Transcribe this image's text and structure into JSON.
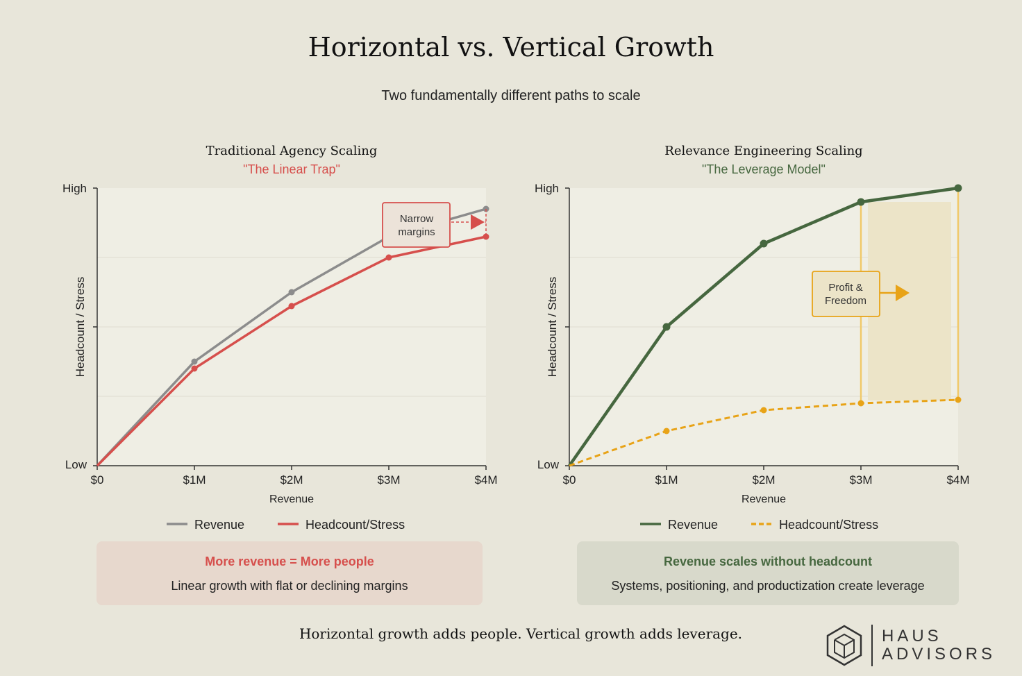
{
  "title": "Horizontal vs. Vertical Growth",
  "subtitle": "Two fundamentally different paths to scale",
  "chart_data": [
    {
      "type": "line",
      "title": "Traditional Agency Scaling",
      "subtitle": "\"The Linear Trap\"",
      "xlabel": "Revenue",
      "ylabel": "Headcount / Stress",
      "x": [
        "$0",
        "$1M",
        "$2M",
        "$3M",
        "$4M"
      ],
      "y_ticks": [
        "Low",
        "High"
      ],
      "ylim": [
        0,
        1
      ],
      "grid": true,
      "legend": "bottom",
      "series": [
        {
          "name": "Revenue",
          "values": [
            0,
            0.375,
            0.625,
            0.825,
            0.925
          ],
          "color": "#8c8c8c",
          "dashed": false
        },
        {
          "name": "Headcount/Stress",
          "values": [
            0,
            0.35,
            0.575,
            0.75,
            0.825
          ],
          "color": "#d64f4c",
          "dashed": false
        }
      ],
      "annotation": {
        "text_line1": "Narrow",
        "text_line2": "margins"
      }
    },
    {
      "type": "line",
      "title": "Relevance Engineering Scaling",
      "subtitle": "\"The Leverage Model\"",
      "xlabel": "Revenue",
      "ylabel": "Headcount / Stress",
      "x": [
        "$0",
        "$1M",
        "$2M",
        "$3M",
        "$4M"
      ],
      "y_ticks": [
        "Low",
        "High"
      ],
      "ylim": [
        0,
        1
      ],
      "grid": true,
      "legend": "bottom",
      "series": [
        {
          "name": "Revenue",
          "values": [
            0,
            0.5,
            0.8,
            0.95,
            1.0
          ],
          "color": "#46673f",
          "dashed": false
        },
        {
          "name": "Headcount/Stress",
          "values": [
            0,
            0.125,
            0.2,
            0.225,
            0.2375
          ],
          "color": "#e8a317",
          "dashed": true
        }
      ],
      "annotation": {
        "text_line1": "Profit &",
        "text_line2": "Freedom"
      }
    }
  ],
  "callouts": {
    "left": {
      "heading": "More revenue = More people",
      "body": "Linear growth with flat or declining margins"
    },
    "right": {
      "heading": "Revenue scales without headcount",
      "body": "Systems, positioning, and productization create leverage"
    }
  },
  "footer": "Horizontal growth adds people. Vertical growth adds leverage.",
  "logo": {
    "line1": "HAUS",
    "line2": "ADVISORS",
    "icon": "house-cube-icon"
  },
  "colors": {
    "background": "#e8e6da",
    "plot_bg": "#efeee4",
    "red": "#d64f4c",
    "green": "#46673f",
    "gold": "#e8a317",
    "gray": "#8c8c8c"
  }
}
